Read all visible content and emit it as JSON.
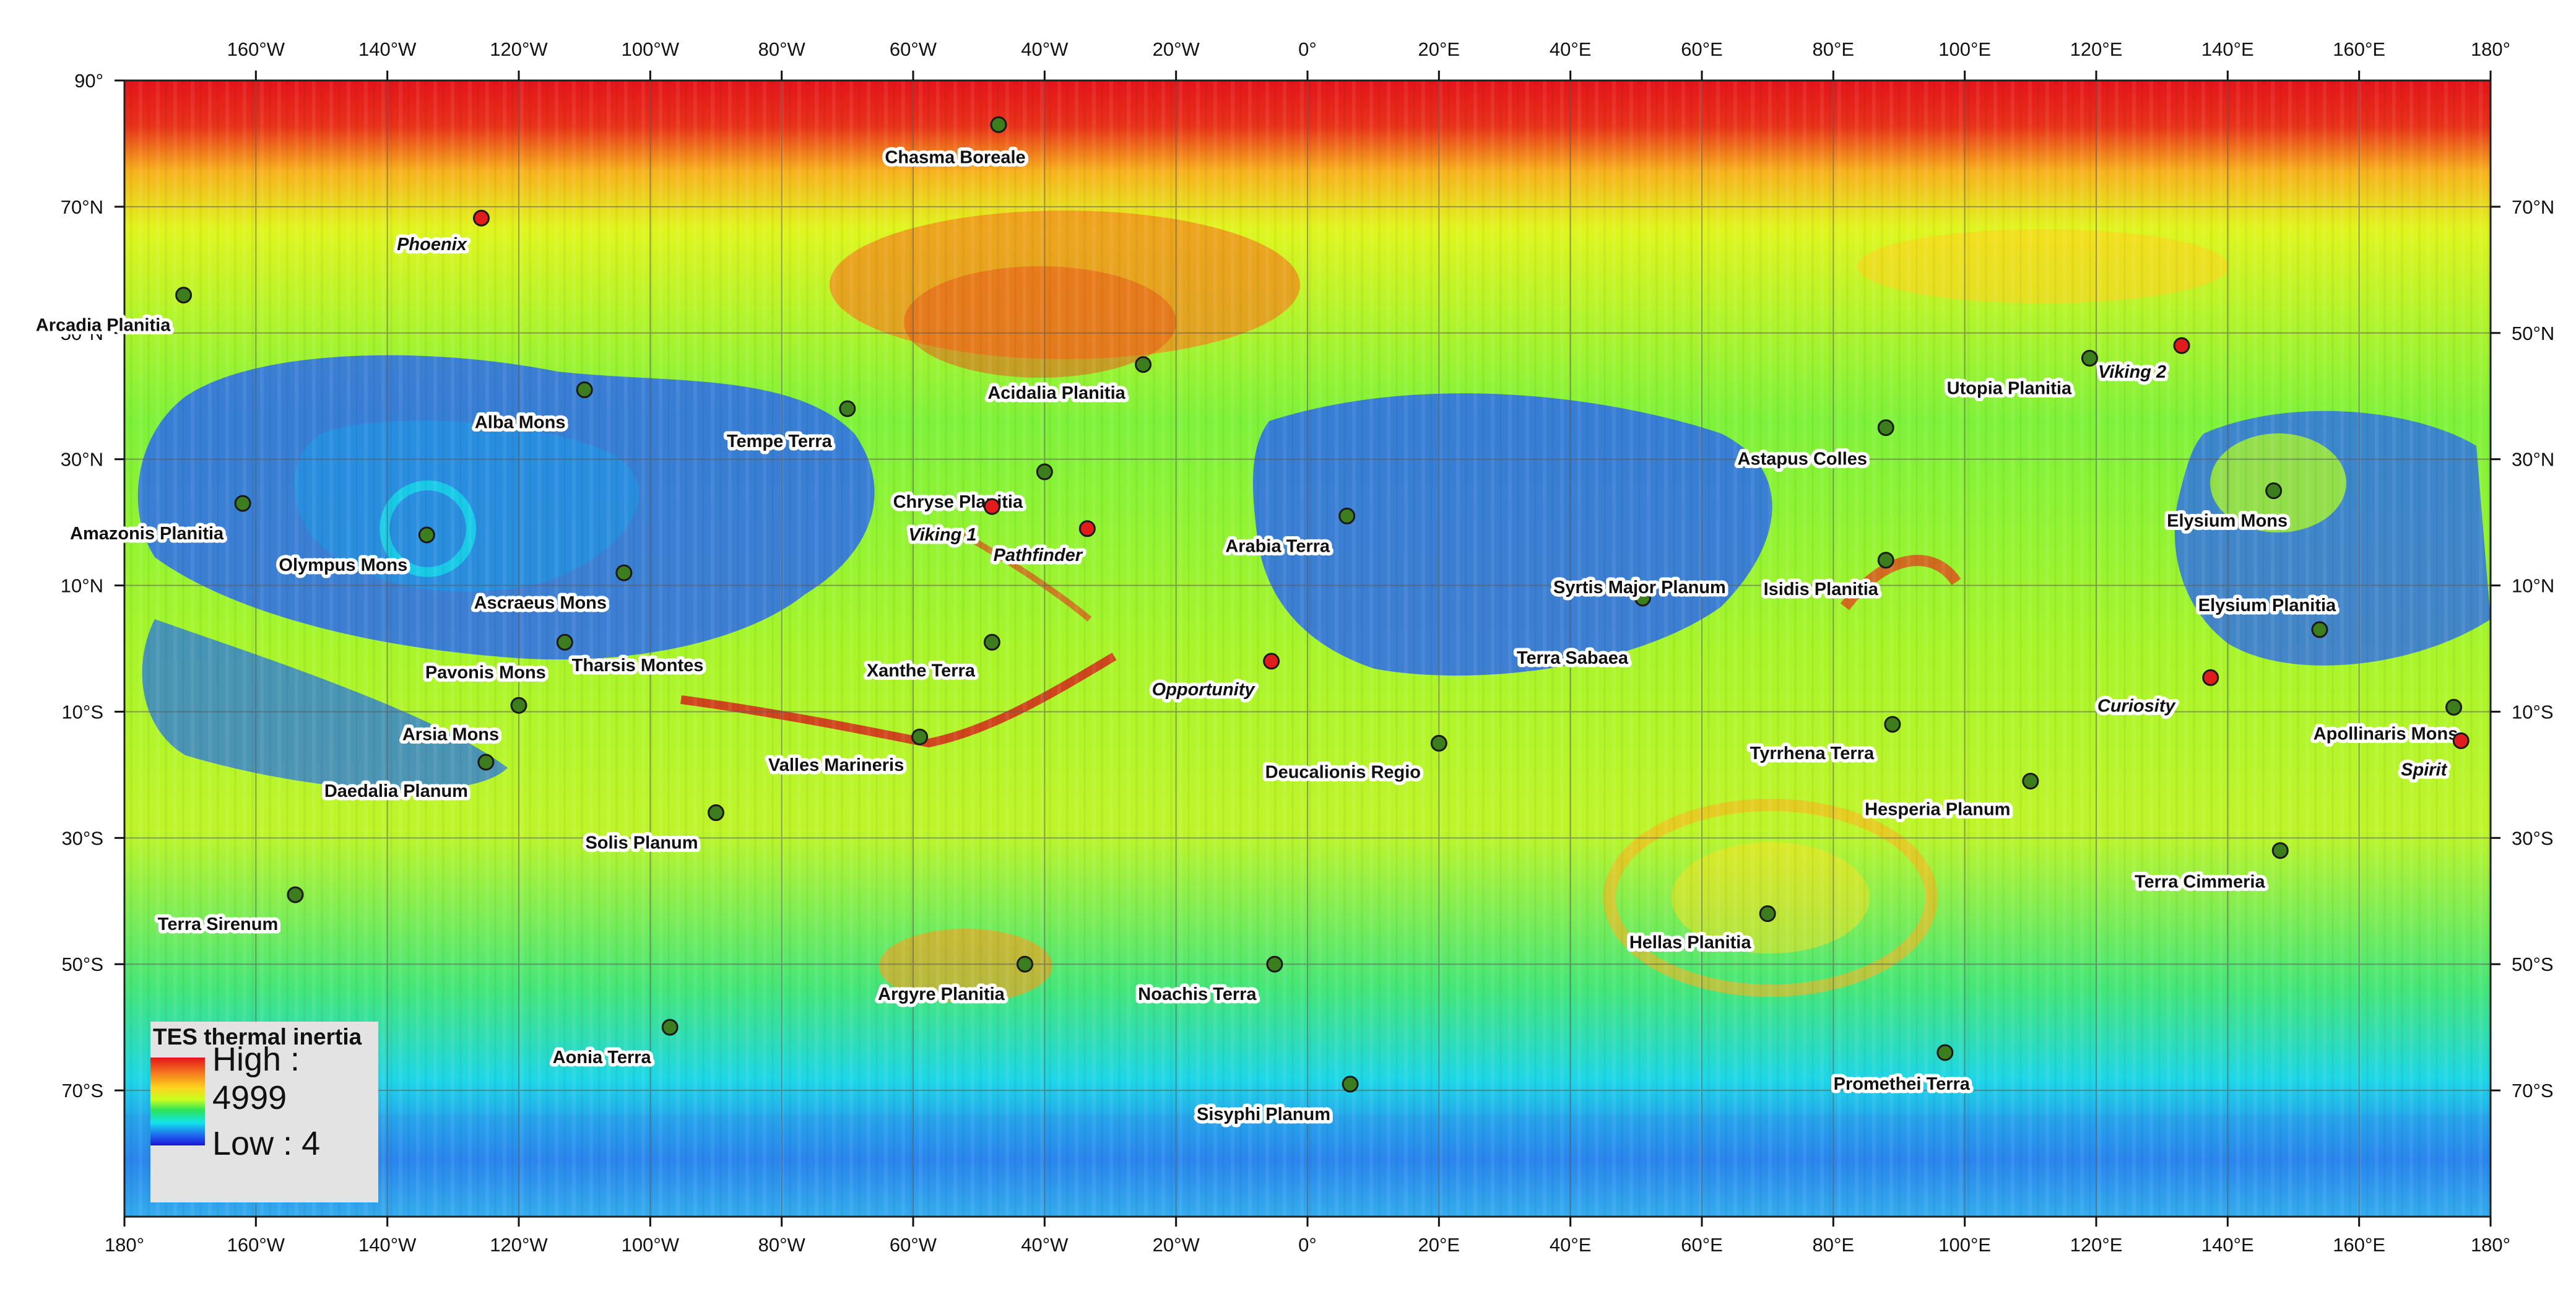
{
  "map": {
    "layer": "TES thermal inertia",
    "grid": "10° graticule",
    "colors": {
      "high": "#e4141a",
      "mid": "#c8ff1e",
      "low": "#1a14d8",
      "lander_marker": "#e21c1c",
      "feature_marker": "#3c7d1e"
    }
  },
  "axes": {
    "lon_top": [
      "160°W",
      "140°W",
      "120°W",
      "100°W",
      "80°W",
      "60°W",
      "40°W",
      "20°W",
      "0°",
      "20°E",
      "40°E",
      "60°E",
      "80°E",
      "100°E",
      "120°E",
      "140°E",
      "160°E",
      "180°"
    ],
    "lon_bottom": [
      "180°",
      "160°W",
      "140°W",
      "120°W",
      "100°W",
      "80°W",
      "60°W",
      "40°W",
      "20°W",
      "0°",
      "20°E",
      "40°E",
      "60°E",
      "80°E",
      "100°E",
      "120°E",
      "140°E",
      "160°E",
      "180°"
    ],
    "lat_left": [
      "90°",
      "70°N",
      "50°N",
      "30°N",
      "10°N",
      "10°S",
      "30°S",
      "50°S",
      "70°S"
    ],
    "lat_right": [
      "70°N",
      "50°N",
      "30°N",
      "10°N",
      "10°S",
      "30°S",
      "50°S",
      "70°S"
    ]
  },
  "features": [
    {
      "name": "Chasma Boreale",
      "lon": -47,
      "lat": 83,
      "type": "natural"
    },
    {
      "name": "Phoenix",
      "lon": -125.7,
      "lat": 68.2,
      "type": "lander"
    },
    {
      "name": "Arcadia Planitia",
      "lon": -171,
      "lat": 56,
      "type": "natural"
    },
    {
      "name": "Acidalia Planitia",
      "lon": -25,
      "lat": 45,
      "type": "natural"
    },
    {
      "name": "Alba Mons",
      "lon": -110,
      "lat": 41,
      "type": "natural"
    },
    {
      "name": "Tempe Terra",
      "lon": -70,
      "lat": 38,
      "type": "natural"
    },
    {
      "name": "Utopia Planitia",
      "lon": 119,
      "lat": 46,
      "type": "natural"
    },
    {
      "name": "Viking 2",
      "lon": 133,
      "lat": 48,
      "type": "lander"
    },
    {
      "name": "Astapus Colles",
      "lon": 88,
      "lat": 35,
      "type": "natural"
    },
    {
      "name": "Chryse Planitia",
      "lon": -40,
      "lat": 28,
      "type": "natural"
    },
    {
      "name": "Viking 1",
      "lon": -48,
      "lat": 22.5,
      "type": "lander"
    },
    {
      "name": "Pathfinder",
      "lon": -33.5,
      "lat": 19,
      "type": "lander"
    },
    {
      "name": "Amazonis Planitia",
      "lon": -162,
      "lat": 23,
      "type": "natural"
    },
    {
      "name": "Olympus Mons",
      "lon": -134,
      "lat": 18,
      "type": "natural"
    },
    {
      "name": "Elysium Mons",
      "lon": 147,
      "lat": 25,
      "type": "natural"
    },
    {
      "name": "Arabia Terra",
      "lon": 6,
      "lat": 21,
      "type": "natural"
    },
    {
      "name": "Ascraeus Mons",
      "lon": -104,
      "lat": 12,
      "type": "natural"
    },
    {
      "name": "Isidis Planitia",
      "lon": 88,
      "lat": 14,
      "type": "natural"
    },
    {
      "name": "Syrtis Major Planum",
      "lon": 51,
      "lat": 8,
      "type": "natural"
    },
    {
      "name": "Pavonis Mons",
      "lon": -113,
      "lat": 1,
      "type": "natural"
    },
    {
      "name": "Thars­is Montes",
      "lon": -113,
      "lat": 1,
      "type": "hidden"
    },
    {
      "name": "Xanthe Terra",
      "lon": -48,
      "lat": 1,
      "type": "natural"
    },
    {
      "name": "Opportunity",
      "lon": -5.5,
      "lat": -2,
      "type": "lander"
    },
    {
      "name": "Terra Sabaea",
      "lon": 45,
      "lat": -1,
      "type": "hidden"
    },
    {
      "name": "Elysium Planitia",
      "lon": 154,
      "lat": 3,
      "type": "natural"
    },
    {
      "name": "Curiosity",
      "lon": 137.4,
      "lat": -4.6,
      "type": "lander"
    },
    {
      "name": "Arsia Mons",
      "lon": -120,
      "lat": -9,
      "type": "natural"
    },
    {
      "name": "Apollinaris Mons",
      "lon": 174.4,
      "lat": -9.3,
      "type": "natural"
    },
    {
      "name": "Spirit",
      "lon": 175.5,
      "lat": -14.6,
      "type": "lander"
    },
    {
      "name": "Valles Marineris",
      "lon": -59,
      "lat": -14,
      "type": "natural"
    },
    {
      "name": "Deucalionis Regio",
      "lon": 20,
      "lat": -15,
      "type": "natural"
    },
    {
      "name": "Tyrrhena Terra",
      "lon": 89,
      "lat": -12,
      "type": "natural"
    },
    {
      "name": "Daedalia Planum",
      "lon": -125,
      "lat": -18,
      "type": "natural"
    },
    {
      "name": "Hesperia Planum",
      "lon": 110,
      "lat": -21,
      "type": "natural"
    },
    {
      "name": "Solis Planum",
      "lon": -90,
      "lat": -26,
      "type": "natural"
    },
    {
      "name": "Terra Cimmeria",
      "lon": 148,
      "lat": -32,
      "type": "natural"
    },
    {
      "name": "Terra Sirenum",
      "lon": -154,
      "lat": -39,
      "type": "natural"
    },
    {
      "name": "Hellas Planitia",
      "lon": 70,
      "lat": -42,
      "type": "natural"
    },
    {
      "name": "Argyre Planitia",
      "lon": -43,
      "lat": -50,
      "type": "natural"
    },
    {
      "name": "Noachis Terra",
      "lon": -5,
      "lat": -50,
      "type": "natural"
    },
    {
      "name": "Aonia Terra",
      "lon": -97,
      "lat": -60,
      "type": "natural"
    },
    {
      "name": "Promethei Terra",
      "lon": 97,
      "lat": -64,
      "type": "natural"
    },
    {
      "name": "Sisyphi Planum",
      "lon": 6.5,
      "lat": -69,
      "type": "natural"
    }
  ],
  "labels": {
    "Chasma Boreale": "Chasma Boreale",
    "Phoenix": "Phoenix",
    "Arcadia Planitia": "Arcadia Planitia",
    "Acidalia Planitia": "Acidalia Planitia",
    "Alba Mons": "Alba Mons",
    "Tempe Terra": "Tempe Terra",
    "Utopia Planitia": "Utopia Planitia",
    "Viking 2": "Viking 2",
    "Astapus Colles": "Astapus Colles",
    "Chryse Planitia": "Chryse Planitia",
    "Viking 1": "Viking 1",
    "Pathfinder": "Pathfinder",
    "Amazonis Planitia": "Amazonis Planitia",
    "Olympus Mons": "Olympus Mons",
    "Elysium Mons": "Elysium Mons",
    "Arabia Terra": "Arabia Terra",
    "Ascraeus Mons": "Ascraeus Mons",
    "Isidis Planitia": "Isidis Planitia",
    "Syrtis Major Planum": "Syrtis Major Planum",
    "Pavonis Mons": "Pavonis Mons",
    "Tharsis Montes": "Tharsis Montes",
    "Xanthe Terra": "Xanthe Terra",
    "Opportunity": "Opportunity",
    "Terra Sabaea": "Terra Sabaea",
    "Elysium Planitia": "Elysium Planitia",
    "Curiosity": "Curiosity",
    "Arsia Mons": "Arsia Mons",
    "Apollinaris Mons": "Apollinaris Mons",
    "Spirit": "Spirit",
    "Valles Marineris": "Valles Marineris",
    "Deucalionis Regio": "Deucalionis Regio",
    "Tyrrhena Terra": "Tyrrhena Terra",
    "Daedalia Planum": "Daedalia Planum",
    "Hesperia Planum": "Hesperia Planum",
    "Solis Planum": "Solis Planum",
    "Terra Cimmeria": "Terra Cimmeria",
    "Terra Sirenum": "Terra Sirenum",
    "Hellas Planitia": "Hellas Planitia",
    "Argyre Planitia": "Argyre Planitia",
    "Noachis Terra": "Noachis Terra",
    "Aonia Terra": "Aonia Terra",
    "Promethei Terra": "Promethei Terra",
    "Sisyphi Planum": "Sisyphi Planum"
  },
  "legend": {
    "title": "TES thermal inertia",
    "high": "High : 4999",
    "low": "Low : 4"
  }
}
